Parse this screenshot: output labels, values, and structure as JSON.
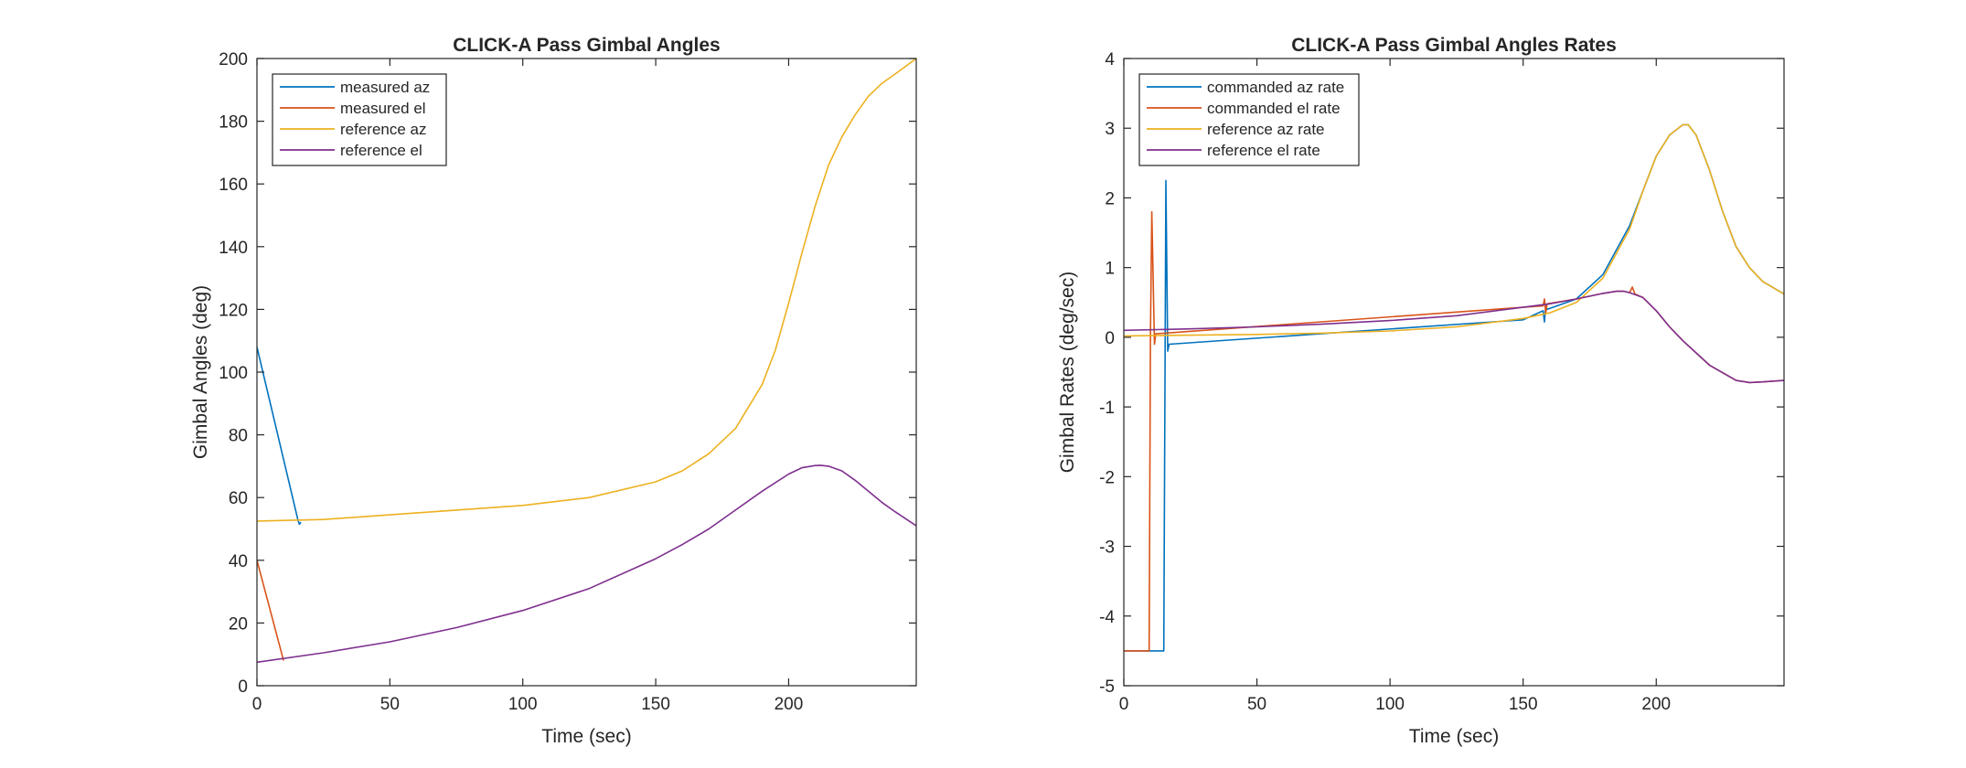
{
  "chart_data": [
    {
      "type": "line",
      "title": "CLICK-A Pass Gimbal Angles",
      "xlabel": "Time (sec)",
      "ylabel": "Gimbal Angles (deg)",
      "xlim": [
        0,
        248
      ],
      "ylim": [
        0,
        200
      ],
      "xticks": [
        0,
        50,
        100,
        150,
        200
      ],
      "yticks": [
        0,
        20,
        40,
        60,
        80,
        100,
        120,
        140,
        160,
        180,
        200
      ],
      "legend_position": "top-left",
      "grid": false,
      "series": [
        {
          "name": "measured az",
          "color": "#0072BD",
          "x": [
            0,
            15.5,
            16,
            16.5
          ],
          "y": [
            108,
            52.5,
            51.5,
            52.2
          ]
        },
        {
          "name": "measured el",
          "color": "#D95319",
          "x": [
            0,
            10
          ],
          "y": [
            40,
            8
          ]
        },
        {
          "name": "reference az",
          "color": "#EDB120",
          "x": [
            0,
            25,
            50,
            75,
            100,
            125,
            150,
            160,
            170,
            180,
            190,
            195,
            200,
            205,
            210,
            215,
            220,
            225,
            230,
            235,
            240,
            248
          ],
          "y": [
            52.5,
            53,
            54.5,
            56,
            57.5,
            60,
            65,
            68.5,
            74,
            82,
            96,
            107,
            122,
            138,
            153,
            166,
            175,
            182,
            188,
            192,
            195,
            200
          ]
        },
        {
          "name": "reference el",
          "color": "#7E2F8E",
          "x": [
            0,
            25,
            50,
            75,
            100,
            125,
            150,
            160,
            170,
            180,
            190,
            200,
            205,
            210,
            212,
            215,
            220,
            225,
            230,
            235,
            240,
            248
          ],
          "y": [
            7.5,
            10.5,
            14,
            18.5,
            24,
            31,
            40.5,
            45,
            50,
            56,
            62,
            67.5,
            69.5,
            70.2,
            70.3,
            70,
            68.5,
            65.5,
            62,
            58.5,
            55.5,
            51
          ]
        }
      ]
    },
    {
      "type": "line",
      "title": "CLICK-A Pass Gimbal Angles Rates",
      "xlabel": "Time (sec)",
      "ylabel": "Gimbal Rates (deg/sec)",
      "xlim": [
        0,
        248
      ],
      "ylim": [
        -5,
        4
      ],
      "xticks": [
        0,
        50,
        100,
        150,
        200
      ],
      "yticks": [
        -5,
        -4,
        -3,
        -2,
        -1,
        0,
        1,
        2,
        3,
        4
      ],
      "legend_position": "top-left",
      "grid": false,
      "series": [
        {
          "name": "commanded az rate",
          "color": "#0072BD",
          "x": [
            0,
            14.5,
            15,
            15.8,
            16.5,
            17,
            150,
            157.5,
            158,
            158.5,
            159,
            170,
            180,
            190,
            195,
            200,
            205,
            210,
            212,
            215,
            220,
            225,
            230,
            235,
            240,
            248
          ],
          "y": [
            -4.5,
            -4.5,
            -4.5,
            2.25,
            -0.2,
            -0.1,
            0.25,
            0.38,
            0.22,
            0.45,
            0.4,
            0.55,
            0.9,
            1.6,
            2.1,
            2.6,
            2.9,
            3.05,
            3.05,
            2.9,
            2.4,
            1.8,
            1.3,
            1.0,
            0.8,
            0.62
          ]
        },
        {
          "name": "commanded el rate",
          "color": "#D95319",
          "x": [
            0,
            9.5,
            10,
            10.5,
            11,
            11.5,
            12,
            150,
            157.5,
            158,
            158.5,
            159,
            170,
            180,
            185,
            188,
            190,
            191,
            192,
            195,
            200,
            205,
            210,
            220,
            230,
            235,
            240,
            248
          ],
          "y": [
            -4.5,
            -4.5,
            0.0,
            1.8,
            0.9,
            -0.1,
            0.05,
            0.43,
            0.45,
            0.55,
            0.35,
            0.48,
            0.55,
            0.63,
            0.66,
            0.66,
            0.64,
            0.72,
            0.62,
            0.57,
            0.38,
            0.15,
            -0.05,
            -0.4,
            -0.62,
            -0.65,
            -0.64,
            -0.62
          ]
        },
        {
          "name": "reference az rate",
          "color": "#EDB120",
          "x": [
            0,
            25,
            50,
            75,
            100,
            125,
            150,
            160,
            170,
            180,
            190,
            195,
            200,
            205,
            210,
            212,
            215,
            220,
            225,
            230,
            235,
            240,
            248
          ],
          "y": [
            0.02,
            0.03,
            0.04,
            0.06,
            0.09,
            0.15,
            0.27,
            0.35,
            0.5,
            0.85,
            1.55,
            2.1,
            2.6,
            2.9,
            3.05,
            3.05,
            2.9,
            2.4,
            1.8,
            1.3,
            1.0,
            0.8,
            0.62
          ]
        },
        {
          "name": "reference el rate",
          "color": "#7E2F8E",
          "x": [
            0,
            25,
            50,
            75,
            100,
            125,
            150,
            160,
            170,
            180,
            185,
            188,
            190,
            195,
            200,
            205,
            210,
            220,
            230,
            235,
            240,
            248
          ],
          "y": [
            0.1,
            0.12,
            0.15,
            0.19,
            0.24,
            0.31,
            0.43,
            0.48,
            0.55,
            0.63,
            0.66,
            0.66,
            0.64,
            0.57,
            0.38,
            0.15,
            -0.05,
            -0.4,
            -0.62,
            -0.65,
            -0.64,
            -0.62
          ]
        }
      ]
    }
  ]
}
